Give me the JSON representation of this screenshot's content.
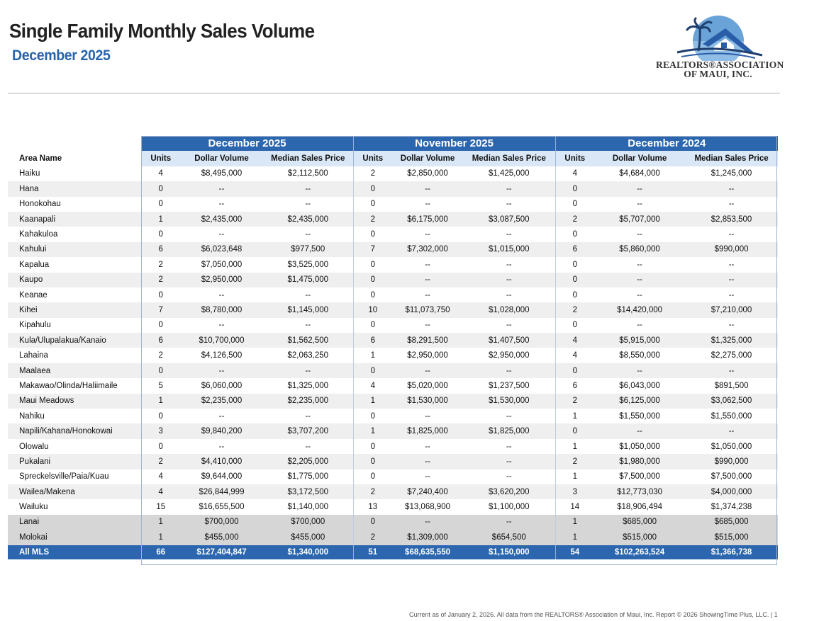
{
  "header": {
    "title": "Single Family Monthly Sales Volume",
    "subtitle": "December 2025"
  },
  "logo": {
    "line1": "REALTORS®ASSOCIATION",
    "line2": "OF MAUI, INC.",
    "colors": {
      "sky": "#6aa3d8",
      "roof": "#2a5da8",
      "palm": "#1f3f6e"
    }
  },
  "table": {
    "area_header": "Area Name",
    "periods": [
      "December 2025",
      "November 2025",
      "December 2024"
    ],
    "column_labels": [
      "Units",
      "Dollar Volume",
      "Median Sales Price"
    ],
    "rows": [
      {
        "area": "Haiku",
        "v": [
          "4",
          "$8,495,000",
          "$2,112,500",
          "2",
          "$2,850,000",
          "$1,425,000",
          "4",
          "$4,684,000",
          "$1,245,000"
        ]
      },
      {
        "area": "Hana",
        "v": [
          "0",
          "--",
          "--",
          "0",
          "--",
          "--",
          "0",
          "--",
          "--"
        ]
      },
      {
        "area": "Honokohau",
        "v": [
          "0",
          "--",
          "--",
          "0",
          "--",
          "--",
          "0",
          "--",
          "--"
        ]
      },
      {
        "area": "Kaanapali",
        "v": [
          "1",
          "$2,435,000",
          "$2,435,000",
          "2",
          "$6,175,000",
          "$3,087,500",
          "2",
          "$5,707,000",
          "$2,853,500"
        ]
      },
      {
        "area": "Kahakuloa",
        "v": [
          "0",
          "--",
          "--",
          "0",
          "--",
          "--",
          "0",
          "--",
          "--"
        ]
      },
      {
        "area": "Kahului",
        "v": [
          "6",
          "$6,023,648",
          "$977,500",
          "7",
          "$7,302,000",
          "$1,015,000",
          "6",
          "$5,860,000",
          "$990,000"
        ]
      },
      {
        "area": "Kapalua",
        "v": [
          "2",
          "$7,050,000",
          "$3,525,000",
          "0",
          "--",
          "--",
          "0",
          "--",
          "--"
        ]
      },
      {
        "area": "Kaupo",
        "v": [
          "2",
          "$2,950,000",
          "$1,475,000",
          "0",
          "--",
          "--",
          "0",
          "--",
          "--"
        ]
      },
      {
        "area": "Keanae",
        "v": [
          "0",
          "--",
          "--",
          "0",
          "--",
          "--",
          "0",
          "--",
          "--"
        ]
      },
      {
        "area": "Kihei",
        "v": [
          "7",
          "$8,780,000",
          "$1,145,000",
          "10",
          "$11,073,750",
          "$1,028,000",
          "2",
          "$14,420,000",
          "$7,210,000"
        ]
      },
      {
        "area": "Kipahulu",
        "v": [
          "0",
          "--",
          "--",
          "0",
          "--",
          "--",
          "0",
          "--",
          "--"
        ]
      },
      {
        "area": "Kula/Ulupalakua/Kanaio",
        "v": [
          "6",
          "$10,700,000",
          "$1,562,500",
          "6",
          "$8,291,500",
          "$1,407,500",
          "4",
          "$5,915,000",
          "$1,325,000"
        ]
      },
      {
        "area": "Lahaina",
        "v": [
          "2",
          "$4,126,500",
          "$2,063,250",
          "1",
          "$2,950,000",
          "$2,950,000",
          "4",
          "$8,550,000",
          "$2,275,000"
        ]
      },
      {
        "area": "Maalaea",
        "v": [
          "0",
          "--",
          "--",
          "0",
          "--",
          "--",
          "0",
          "--",
          "--"
        ]
      },
      {
        "area": "Makawao/Olinda/Haliimaile",
        "v": [
          "5",
          "$6,060,000",
          "$1,325,000",
          "4",
          "$5,020,000",
          "$1,237,500",
          "6",
          "$6,043,000",
          "$891,500"
        ]
      },
      {
        "area": "Maui Meadows",
        "v": [
          "1",
          "$2,235,000",
          "$2,235,000",
          "1",
          "$1,530,000",
          "$1,530,000",
          "2",
          "$6,125,000",
          "$3,062,500"
        ]
      },
      {
        "area": "Nahiku",
        "v": [
          "0",
          "--",
          "--",
          "0",
          "--",
          "--",
          "1",
          "$1,550,000",
          "$1,550,000"
        ]
      },
      {
        "area": "Napili/Kahana/Honokowai",
        "v": [
          "3",
          "$9,840,200",
          "$3,707,200",
          "1",
          "$1,825,000",
          "$1,825,000",
          "0",
          "--",
          "--"
        ]
      },
      {
        "area": "Olowalu",
        "v": [
          "0",
          "--",
          "--",
          "0",
          "--",
          "--",
          "1",
          "$1,050,000",
          "$1,050,000"
        ]
      },
      {
        "area": "Pukalani",
        "v": [
          "2",
          "$4,410,000",
          "$2,205,000",
          "0",
          "--",
          "--",
          "2",
          "$1,980,000",
          "$990,000"
        ]
      },
      {
        "area": "Spreckelsville/Paia/Kuau",
        "v": [
          "4",
          "$9,644,000",
          "$1,775,000",
          "0",
          "--",
          "--",
          "1",
          "$7,500,000",
          "$7,500,000"
        ]
      },
      {
        "area": "Wailea/Makena",
        "v": [
          "4",
          "$26,844,999",
          "$3,172,500",
          "2",
          "$7,240,400",
          "$3,620,200",
          "3",
          "$12,773,030",
          "$4,000,000"
        ]
      },
      {
        "area": "Wailuku",
        "v": [
          "15",
          "$16,655,500",
          "$1,140,000",
          "13",
          "$13,068,900",
          "$1,100,000",
          "14",
          "$18,906,494",
          "$1,374,238"
        ]
      },
      {
        "area": "Lanai",
        "island": true,
        "v": [
          "1",
          "$700,000",
          "$700,000",
          "0",
          "--",
          "--",
          "1",
          "$685,000",
          "$685,000"
        ]
      },
      {
        "area": "Molokai",
        "island": true,
        "v": [
          "1",
          "$455,000",
          "$455,000",
          "2",
          "$1,309,000",
          "$654,500",
          "1",
          "$515,000",
          "$515,000"
        ]
      }
    ],
    "total": {
      "area": "All MLS",
      "v": [
        "66",
        "$127,404,847",
        "$1,340,000",
        "51",
        "$68,635,550",
        "$1,150,000",
        "54",
        "$102,263,524",
        "$1,366,738"
      ]
    }
  },
  "footer": "Current as of January 2, 2026. All data from the REALTORS® Association of Maui, Inc. Report © 2026 ShowingTime Plus, LLC.  |  1"
}
